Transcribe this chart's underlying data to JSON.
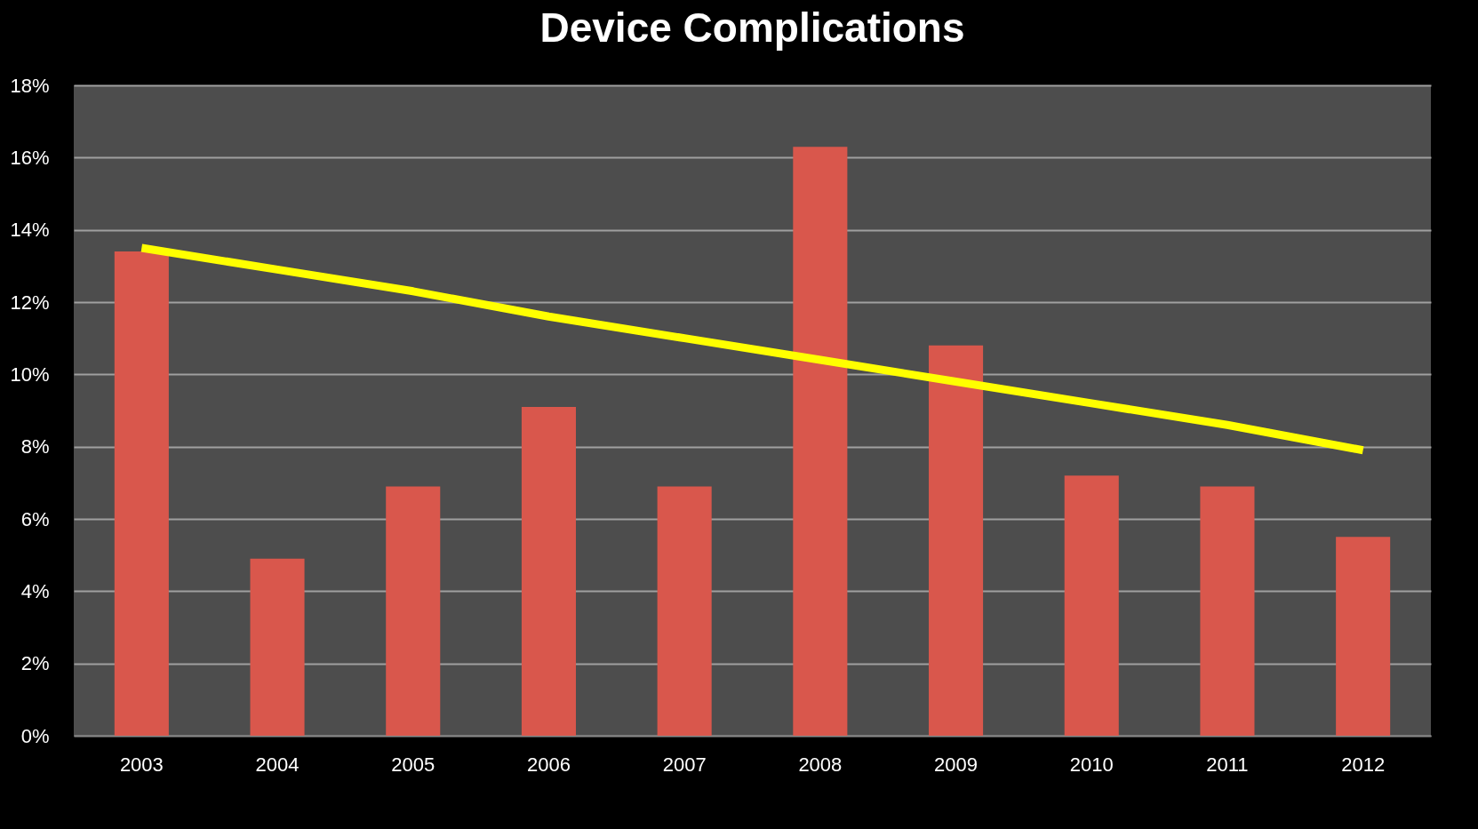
{
  "chart_data": {
    "type": "bar",
    "title": "Device Complications",
    "categories": [
      "2003",
      "2004",
      "2005",
      "2006",
      "2007",
      "2008",
      "2009",
      "2010",
      "2011",
      "2012"
    ],
    "series": [
      {
        "color": "#d9574c",
        "values": [
          13.4,
          4.9,
          6.9,
          9.1,
          6.9,
          16.3,
          10.8,
          7.2,
          6.9,
          5.5
        ]
      },
      {
        "type": "line",
        "color": "#ffff00",
        "values": [
          13.5,
          12.9,
          12.3,
          11.6,
          11.0,
          10.4,
          9.8,
          9.2,
          8.6,
          7.9
        ]
      }
    ],
    "ylim": [
      0,
      18
    ],
    "yticks": [
      {
        "value": 0,
        "label": "0%"
      },
      {
        "value": 2,
        "label": "2%"
      },
      {
        "value": 4,
        "label": "4%"
      },
      {
        "value": 6,
        "label": "6%"
      },
      {
        "value": 8,
        "label": "8%"
      },
      {
        "value": 10,
        "label": "10%"
      },
      {
        "value": 12,
        "label": "12%"
      },
      {
        "value": 14,
        "label": "14%"
      },
      {
        "value": 16,
        "label": "16%"
      },
      {
        "value": 18,
        "label": "18%"
      }
    ],
    "grid": "y"
  }
}
